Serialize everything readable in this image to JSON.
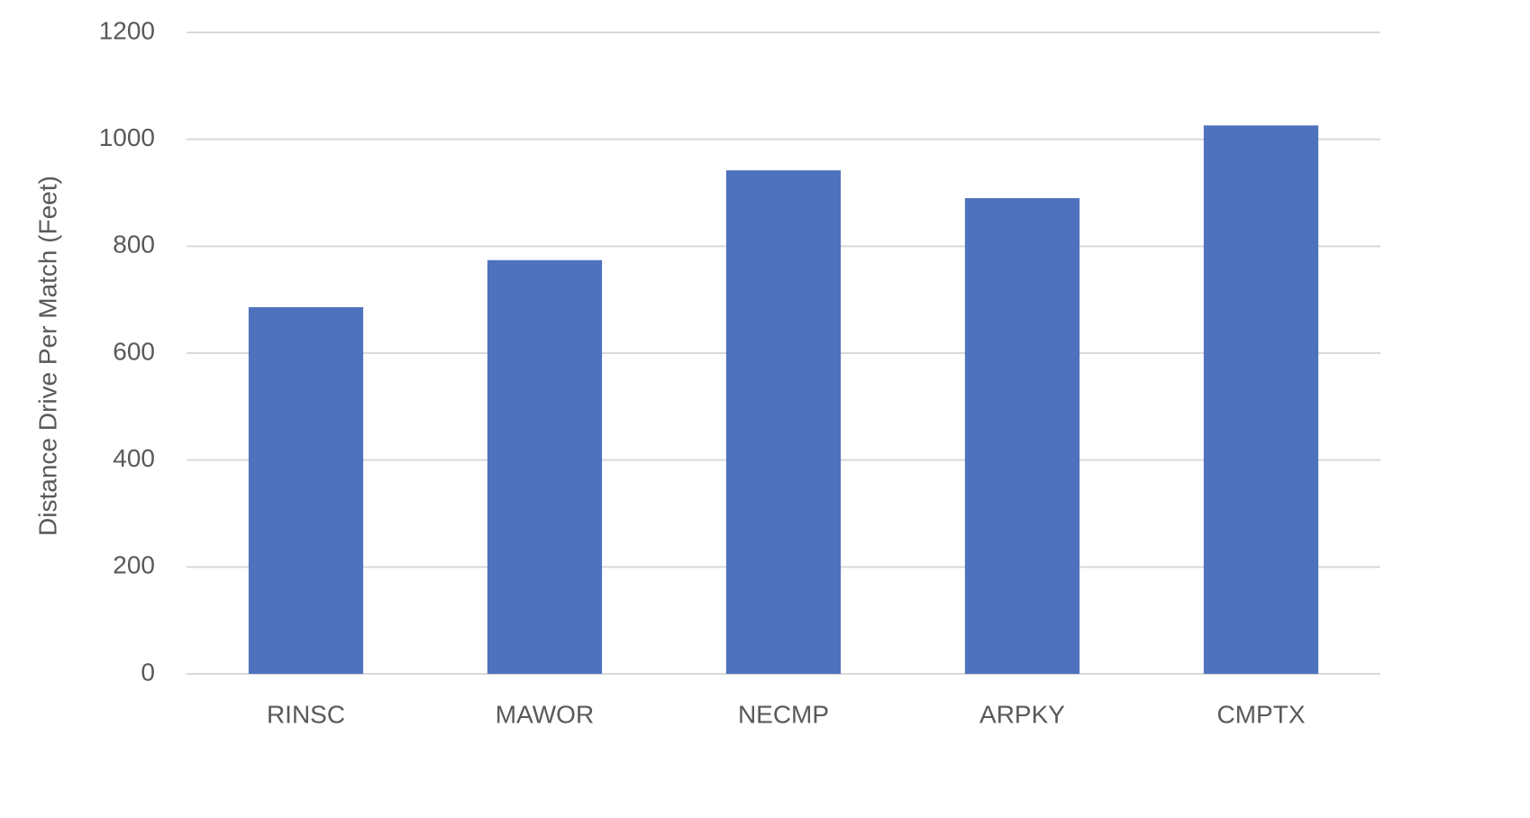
{
  "chart_data": {
    "type": "bar",
    "y_label": "Distance Drive Per Match (Feet)",
    "categories": [
      "RINSC",
      "MAWOR",
      "NECMP",
      "ARPKY",
      "CMPTX"
    ],
    "values": [
      686,
      774,
      942,
      890,
      1026
    ],
    "color": "#4e72be",
    "ylim": [
      0,
      1200
    ],
    "yticks": [
      0,
      200,
      400,
      600,
      800,
      1000,
      1200
    ],
    "grid": true
  }
}
